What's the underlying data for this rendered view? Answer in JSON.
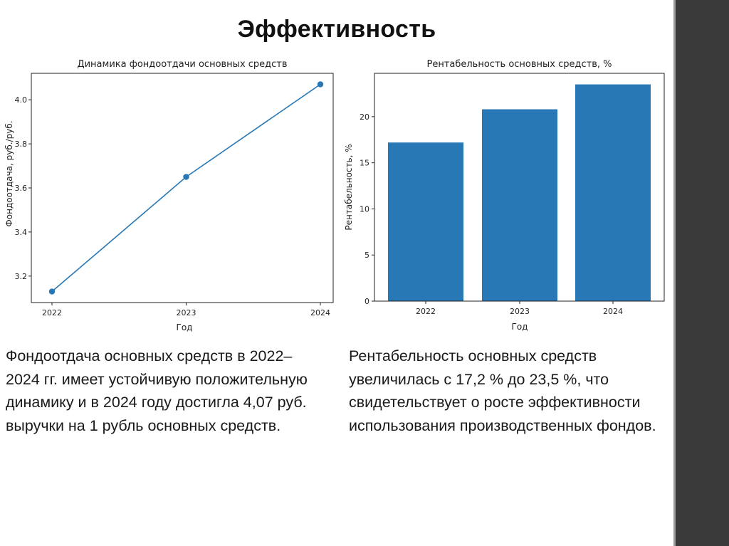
{
  "slide": {
    "title": "Эффективность",
    "left_caption": "Фондоотдача основных средств в 2022–2024 гг. имеет устойчивую положительную динамику и в 2024 году достигла 4,07 руб. выручки на 1 рубль основных средств.",
    "right_caption": "Рентабельность основных средств увеличилась с 17,2 % до 23,5 %, что свидетельствует о росте эффективности использования производственных фондов."
  },
  "colors": {
    "series": "#2878b5",
    "sidebar": "#3a3a3a"
  },
  "chart_data": [
    {
      "type": "line",
      "title": "Динамика фондоотдачи основных средств",
      "xlabel": "Год",
      "ylabel": "Фондоотдача, руб./руб.",
      "categories": [
        "2022",
        "2023",
        "2024"
      ],
      "values": [
        3.13,
        3.65,
        4.07
      ],
      "ylim": [
        3.08,
        4.12
      ],
      "yticks": [
        3.2,
        3.4,
        3.6,
        3.8,
        4.0
      ],
      "ytick_labels": [
        "3.2",
        "3.4",
        "3.6",
        "3.8",
        "4.0"
      ],
      "grid": false,
      "markers": true
    },
    {
      "type": "bar",
      "title": "Рентабельность основных средств, %",
      "xlabel": "Год",
      "ylabel": "Рентабельность, %",
      "categories": [
        "2022",
        "2023",
        "2024"
      ],
      "values": [
        17.2,
        20.8,
        23.5
      ],
      "ylim": [
        0,
        24.7
      ],
      "yticks": [
        0,
        5,
        10,
        15,
        20
      ],
      "ytick_labels": [
        "0",
        "5",
        "10",
        "15",
        "20"
      ],
      "grid": false
    }
  ]
}
